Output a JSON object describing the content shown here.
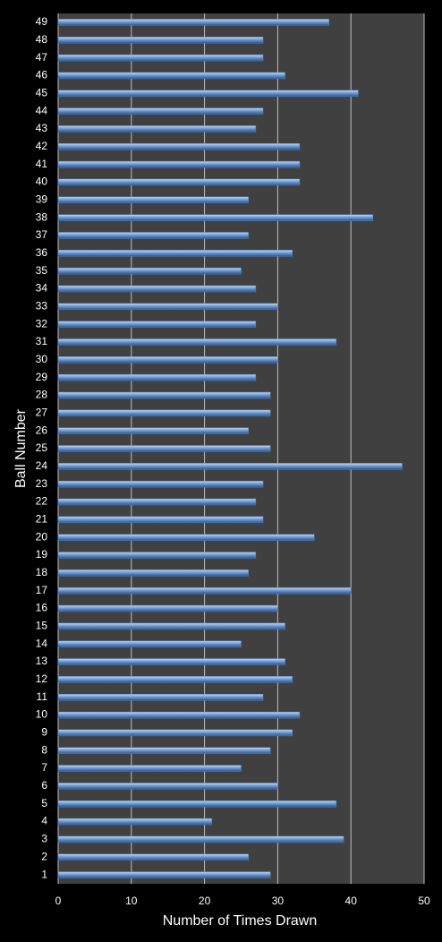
{
  "chart_data": {
    "type": "bar",
    "orientation": "horizontal",
    "x_label": "Number of Times Drawn",
    "y_label": "Ball Number",
    "categories": [
      "1",
      "2",
      "3",
      "4",
      "5",
      "6",
      "7",
      "8",
      "9",
      "10",
      "11",
      "12",
      "13",
      "14",
      "15",
      "16",
      "17",
      "18",
      "19",
      "20",
      "21",
      "22",
      "23",
      "24",
      "25",
      "26",
      "27",
      "28",
      "29",
      "30",
      "31",
      "32",
      "33",
      "34",
      "35",
      "36",
      "37",
      "38",
      "39",
      "40",
      "41",
      "42",
      "43",
      "44",
      "45",
      "46",
      "47",
      "48",
      "49"
    ],
    "values": [
      29,
      26,
      39,
      21,
      38,
      30,
      25,
      29,
      32,
      33,
      28,
      32,
      31,
      25,
      31,
      30,
      40,
      26,
      27,
      35,
      28,
      27,
      28,
      47,
      29,
      26,
      29,
      29,
      27,
      30,
      38,
      27,
      30,
      27,
      25,
      32,
      26,
      43,
      26,
      33,
      33,
      33,
      27,
      28,
      41,
      31,
      28,
      28,
      37
    ],
    "color": "#4f81bd",
    "xlim": [
      0,
      50
    ],
    "xticks": [
      0,
      10,
      20,
      30,
      40,
      50
    ],
    "grid": true
  }
}
